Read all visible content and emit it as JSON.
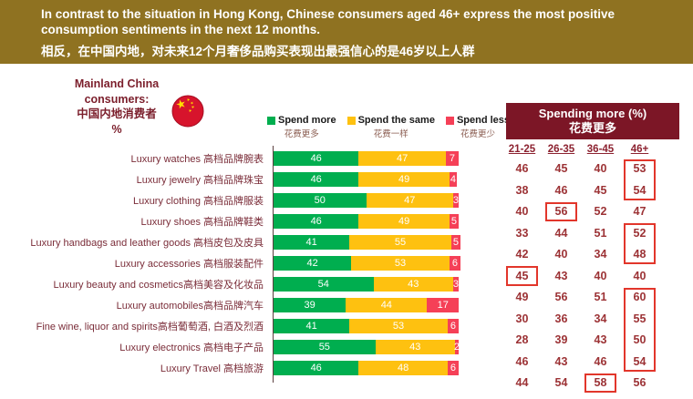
{
  "header": {
    "title_en_line1": "In contrast to the situation in Hong Kong, Chinese consumers aged 46+ express the most positive",
    "title_en_line2": "consumption sentiments in the next 12 months.",
    "title_zh": "相反，在中国内地，对未来12个月奢侈品购买表现出最强信心的是46岁以上人群",
    "band_color": "#8F7221"
  },
  "side_label": {
    "line1": "Mainland China",
    "line2": "consumers:",
    "line3": "中国内地消费者",
    "line4": "%",
    "flag_icon": "china-flag-icon"
  },
  "legend": [
    {
      "label_en": "Spend more",
      "label_zh": "花费更多",
      "color": "#00AE4F"
    },
    {
      "label_en": "Spend the same",
      "label_zh": "花费一样",
      "color": "#FEC110"
    },
    {
      "label_en": "Spend less",
      "label_zh": "花费更少",
      "color": "#F54057"
    }
  ],
  "chart_data": {
    "type": "bar",
    "orientation": "horizontal",
    "stacked": true,
    "xlim": [
      0,
      100
    ],
    "categories": [
      "Luxury watches 高档品牌腕表",
      "Luxury jewelry 高档品牌珠宝",
      "Luxury clothing 高档品牌服装",
      "Luxury shoes 高档品牌鞋类",
      "Luxury handbags and leather goods 高档皮包及皮具",
      "Luxury accessories 高档服装配件",
      "Luxury beauty and cosmetics高档美容及化妆品",
      "Luxury automobiles高档品牌汽车",
      "Fine wine, liquor and spirits高档葡萄酒, 白酒及烈酒",
      "Luxury electronics 高档电子产品",
      "Luxury Travel 高档旅游"
    ],
    "series": [
      {
        "name": "Spend more",
        "color": "#00AE4F",
        "values": [
          46,
          46,
          50,
          46,
          41,
          42,
          54,
          39,
          41,
          55,
          46
        ]
      },
      {
        "name": "Spend the same",
        "color": "#FEC110",
        "values": [
          47,
          49,
          47,
          49,
          55,
          53,
          43,
          44,
          53,
          43,
          48
        ]
      },
      {
        "name": "Spend less",
        "color": "#F54057",
        "values": [
          7,
          4,
          3,
          5,
          5,
          6,
          3,
          17,
          6,
          2,
          6
        ]
      }
    ]
  },
  "table": {
    "title_en": "Spending more (%)",
    "title_zh": "花费更多",
    "columns": [
      "21-25",
      "26-35",
      "36-45",
      "46+"
    ],
    "rows": [
      [
        46,
        45,
        40,
        53
      ],
      [
        38,
        46,
        45,
        54
      ],
      [
        40,
        56,
        52,
        47
      ],
      [
        33,
        44,
        51,
        52
      ],
      [
        42,
        40,
        34,
        48
      ],
      [
        45,
        43,
        40,
        40
      ],
      [
        49,
        56,
        51,
        60
      ],
      [
        30,
        36,
        34,
        55
      ],
      [
        28,
        39,
        43,
        50
      ],
      [
        46,
        43,
        46,
        54
      ],
      [
        44,
        54,
        58,
        56
      ]
    ],
    "highlights": [
      {
        "col": 3,
        "row_start": 0,
        "row_end": 1
      },
      {
        "col": 1,
        "row_start": 2,
        "row_end": 2
      },
      {
        "col": 3,
        "row_start": 3,
        "row_end": 4
      },
      {
        "col": 0,
        "row_start": 5,
        "row_end": 5
      },
      {
        "col": 3,
        "row_start": 6,
        "row_end": 9
      },
      {
        "col": 2,
        "row_start": 10,
        "row_end": 10
      }
    ],
    "highlight_color": "#E2362B",
    "header_bg": "#7C1626",
    "number_color": "#9C3235"
  }
}
